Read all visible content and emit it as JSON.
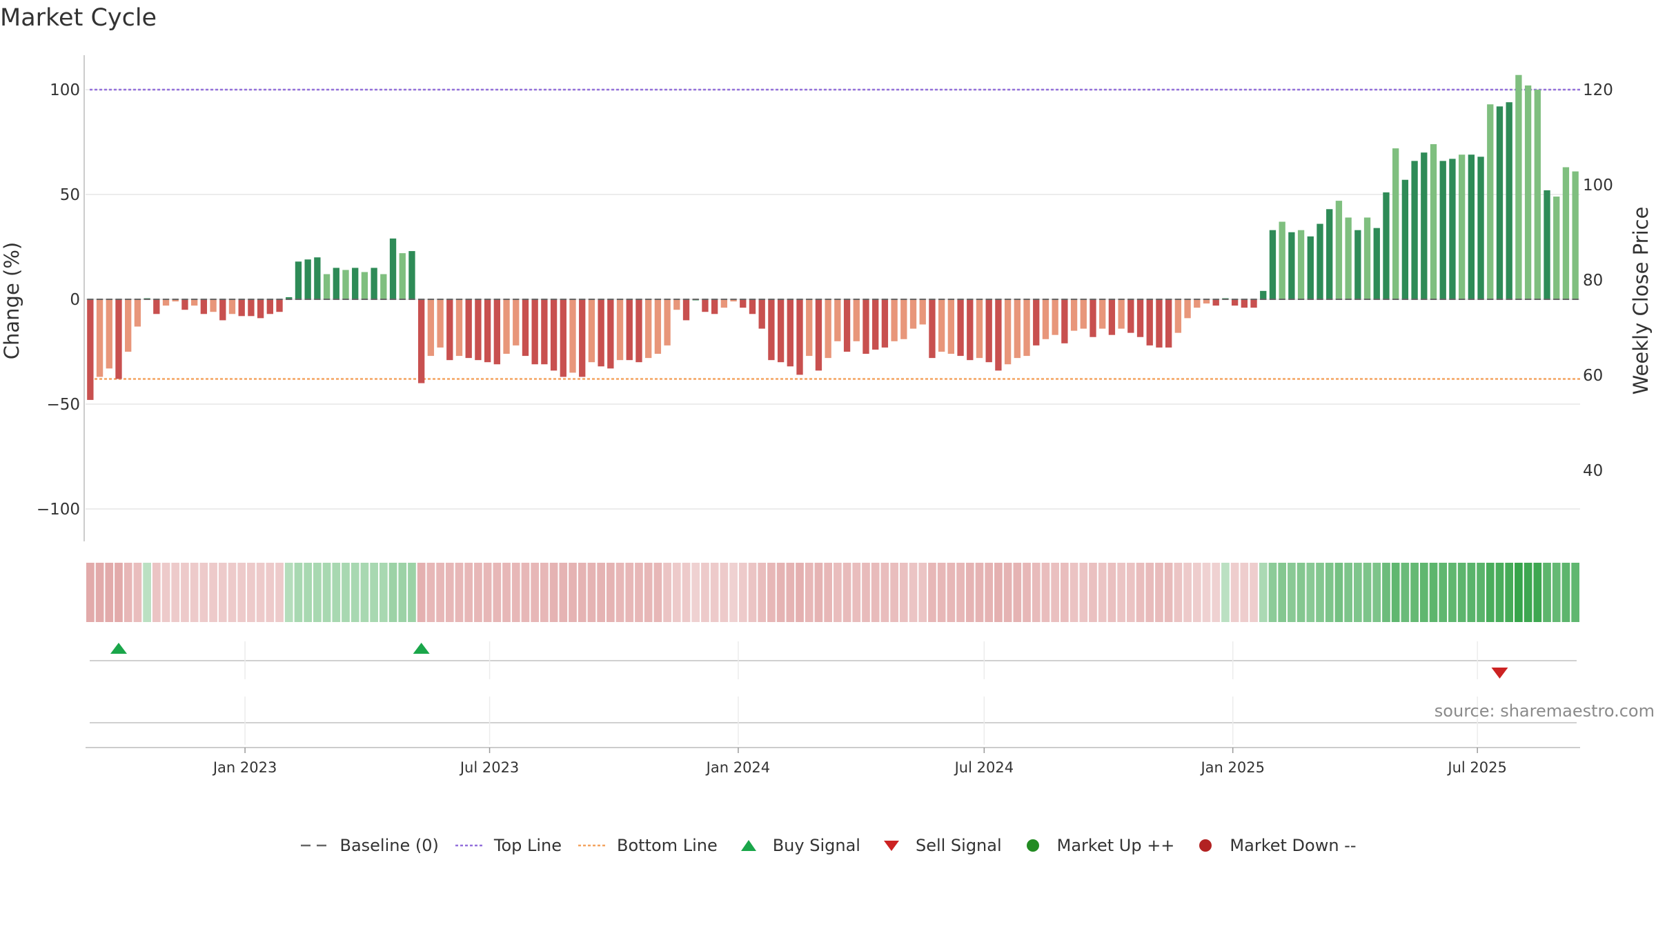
{
  "title": "Market Cycle",
  "source": "source: sharemaestro.com",
  "colors": {
    "dark_green": "#2e8b57",
    "light_green": "#7fbf7f",
    "dark_red": "#c8504f",
    "light_red": "#e8967a",
    "top_line": "#9370db",
    "bottom_line": "#f4a460",
    "baseline": "#666666",
    "buy": "#1aa64a",
    "sell": "#cc2222",
    "market_up": "#228b22",
    "market_down": "#b22222"
  },
  "legend": [
    {
      "label": "Baseline (0)",
      "icon": "dash-line-icon"
    },
    {
      "label": "Top Line",
      "icon": "dotted-purple-line-icon"
    },
    {
      "label": "Bottom Line",
      "icon": "dotted-orange-line-icon"
    },
    {
      "label": "Buy Signal",
      "icon": "triangle-up-icon"
    },
    {
      "label": "Sell Signal",
      "icon": "triangle-down-icon"
    },
    {
      "label": "Market Up ++",
      "icon": "green-dot-icon"
    },
    {
      "label": "Market Down --",
      "icon": "red-dot-icon"
    }
  ],
  "chart_data": {
    "type": "bar",
    "title": "Market Cycle",
    "ylabel": "Change (%)",
    "y2label": "Weekly Close Price",
    "ylim": [
      -116,
      116
    ],
    "y2_ticks": [
      40,
      60,
      80,
      100,
      120
    ],
    "yticks": [
      100,
      50,
      0,
      -50,
      -100
    ],
    "ytick_labels": [
      "100",
      "50",
      "0",
      "−50",
      "−100"
    ],
    "top_line": 100,
    "bottom_line": -38,
    "x_start": "2022-09-05",
    "xticks": [
      {
        "date": "2023-01-01",
        "label": "Jan 2023"
      },
      {
        "date": "2023-07-01",
        "label": "Jul 2023"
      },
      {
        "date": "2024-01-01",
        "label": "Jan 2024"
      },
      {
        "date": "2024-07-01",
        "label": "Jul 2024"
      },
      {
        "date": "2025-01-01",
        "label": "Jan 2025"
      },
      {
        "date": "2025-07-01",
        "label": "Jul 2025"
      }
    ],
    "values": [
      -48,
      -37,
      -33,
      -38,
      -25,
      -13,
      0.5,
      -7,
      -3,
      -1,
      -5,
      -3,
      -7,
      -6,
      -10,
      -7,
      -8,
      -8,
      -9,
      -7,
      -6,
      1,
      18,
      19,
      20,
      12,
      15,
      14,
      15,
      13,
      15,
      12,
      29,
      22,
      23,
      -40,
      -27,
      -23,
      -29,
      -27,
      -28,
      -29,
      -30,
      -31,
      -26,
      -22,
      -27,
      -31,
      -31,
      -34,
      -37,
      -35,
      -37,
      -30,
      -32,
      -33,
      -29,
      -29,
      -30,
      -28,
      -26,
      -22,
      -5,
      -10,
      0,
      -6,
      -7,
      -4,
      -1,
      -4,
      -7,
      -14,
      -29,
      -30,
      -32,
      -36,
      -27,
      -34,
      -28,
      -20,
      -25,
      -20,
      -26,
      -24,
      -23,
      -20,
      -19,
      -14,
      -12,
      -28,
      -25,
      -26,
      -27,
      -29,
      -28,
      -30,
      -34,
      -31,
      -28,
      -27,
      -22,
      -19,
      -17,
      -21,
      -15,
      -14,
      -18,
      -14,
      -17,
      -14,
      -16,
      -18,
      -22,
      -23,
      -23,
      -16,
      -9,
      -4,
      -2,
      -3,
      0.5,
      -3,
      -4,
      -4,
      4,
      33,
      37,
      32,
      33,
      30,
      36,
      43,
      47,
      39,
      33,
      39,
      34,
      51,
      72,
      57,
      66,
      70,
      74,
      66,
      67,
      69,
      69,
      68,
      93,
      92,
      94,
      107,
      102,
      100,
      52,
      49,
      63,
      61
    ],
    "shades": [
      "D",
      "L",
      "L",
      "D",
      "L",
      "L",
      "D",
      "D",
      "L",
      "L",
      "D",
      "L",
      "D",
      "L",
      "D",
      "L",
      "D",
      "D",
      "D",
      "D",
      "D",
      "D",
      "D",
      "D",
      "D",
      "L",
      "D",
      "L",
      "D",
      "L",
      "D",
      "L",
      "D",
      "L",
      "D",
      "D",
      "L",
      "L",
      "D",
      "L",
      "D",
      "D",
      "D",
      "D",
      "L",
      "L",
      "D",
      "D",
      "D",
      "D",
      "D",
      "L",
      "D",
      "L",
      "D",
      "D",
      "L",
      "D",
      "D",
      "L",
      "L",
      "L",
      "L",
      "D",
      "D",
      "D",
      "D",
      "L",
      "L",
      "D",
      "D",
      "D",
      "D",
      "D",
      "D",
      "D",
      "L",
      "D",
      "L",
      "L",
      "D",
      "L",
      "D",
      "D",
      "D",
      "L",
      "L",
      "L",
      "L",
      "D",
      "L",
      "L",
      "D",
      "D",
      "L",
      "D",
      "D",
      "L",
      "L",
      "L",
      "D",
      "L",
      "L",
      "D",
      "L",
      "L",
      "D",
      "L",
      "D",
      "L",
      "D",
      "D",
      "D",
      "D",
      "D",
      "L",
      "L",
      "L",
      "L",
      "D",
      "D",
      "D",
      "D",
      "D",
      "D",
      "D",
      "L",
      "D",
      "L",
      "D",
      "D",
      "D",
      "L",
      "L",
      "D",
      "L",
      "D",
      "D",
      "L",
      "D",
      "D",
      "D",
      "L",
      "D",
      "D",
      "L",
      "D",
      "D",
      "L",
      "D",
      "D",
      "L",
      "L",
      "L",
      "D",
      "L"
    ],
    "buy_signals": [
      3,
      35
    ],
    "sell_signals": [
      149
    ],
    "strip_values": [
      -0.45,
      -0.45,
      -0.45,
      -0.45,
      -0.35,
      -0.3,
      0.1,
      -0.25,
      -0.2,
      -0.2,
      -0.2,
      -0.2,
      -0.2,
      -0.2,
      -0.2,
      -0.2,
      -0.2,
      -0.2,
      -0.2,
      -0.2,
      -0.2,
      0.15,
      0.22,
      0.22,
      0.22,
      0.22,
      0.22,
      0.22,
      0.22,
      0.22,
      0.22,
      0.22,
      0.3,
      0.3,
      0.3,
      -0.4,
      -0.35,
      -0.35,
      -0.35,
      -0.35,
      -0.35,
      -0.35,
      -0.35,
      -0.35,
      -0.35,
      -0.35,
      -0.35,
      -0.35,
      -0.35,
      -0.38,
      -0.38,
      -0.38,
      -0.38,
      -0.38,
      -0.38,
      -0.38,
      -0.35,
      -0.35,
      -0.35,
      -0.35,
      -0.35,
      -0.25,
      -0.2,
      -0.2,
      -0.15,
      -0.2,
      -0.2,
      -0.2,
      -0.15,
      -0.2,
      -0.25,
      -0.3,
      -0.35,
      -0.38,
      -0.38,
      -0.4,
      -0.35,
      -0.38,
      -0.35,
      -0.3,
      -0.32,
      -0.3,
      -0.32,
      -0.32,
      -0.3,
      -0.3,
      -0.28,
      -0.25,
      -0.25,
      -0.35,
      -0.35,
      -0.35,
      -0.35,
      -0.38,
      -0.38,
      -0.38,
      -0.4,
      -0.38,
      -0.38,
      -0.35,
      -0.32,
      -0.3,
      -0.28,
      -0.3,
      -0.26,
      -0.25,
      -0.28,
      -0.25,
      -0.28,
      -0.25,
      -0.26,
      -0.3,
      -0.32,
      -0.32,
      -0.32,
      -0.25,
      -0.2,
      -0.18,
      -0.15,
      -0.15,
      0.1,
      -0.18,
      -0.18,
      -0.18,
      0.2,
      0.4,
      0.45,
      0.42,
      0.45,
      0.42,
      0.45,
      0.5,
      0.55,
      0.5,
      0.48,
      0.5,
      0.5,
      0.6,
      0.68,
      0.62,
      0.65,
      0.68,
      0.7,
      0.68,
      0.68,
      0.7,
      0.72,
      0.72,
      0.82,
      0.82,
      0.85,
      0.95,
      0.9,
      0.9,
      0.7,
      0.65,
      0.7,
      0.68
    ]
  }
}
